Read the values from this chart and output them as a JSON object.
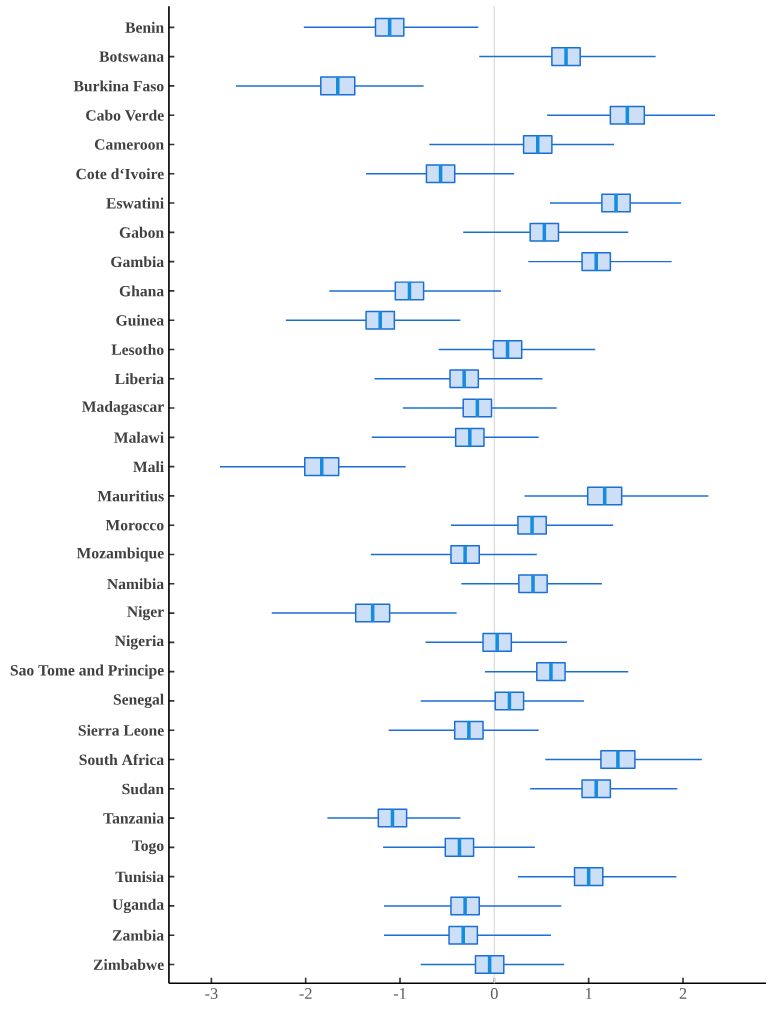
{
  "chart_data": {
    "type": "box",
    "orientation": "horizontal",
    "color": "#1a6fd6",
    "categories": [
      "Benin",
      "Botswana",
      "Burkina Faso",
      "Cabo Verde",
      "Cameroon",
      "Cote d‘Ivoire",
      "Eswatini",
      "Gabon",
      "Gambia",
      "Ghana",
      "Guinea",
      "Lesotho",
      "Liberia",
      "Madagascar",
      "Malawi",
      "Mali",
      "Mauritius",
      "Morocco",
      "Mozambique",
      "Namibia",
      "Niger",
      "Nigeria",
      "Sao Tome and Principe",
      "Senegal",
      "Sierra Leone",
      "South Africa",
      "Sudan",
      "Tanzania",
      "Togo",
      "Tunisia",
      "Uganda",
      "Zambia",
      "Zimbabwe"
    ],
    "boxes": [
      {
        "low": -2.02,
        "q1": -1.26,
        "median": -1.11,
        "q3": -0.96,
        "high": -0.17
      },
      {
        "low": -0.16,
        "q1": 0.61,
        "median": 0.76,
        "q3": 0.91,
        "high": 1.71
      },
      {
        "low": -2.74,
        "q1": -1.84,
        "median": -1.66,
        "q3": -1.48,
        "high": -0.75
      },
      {
        "low": 0.56,
        "q1": 1.23,
        "median": 1.41,
        "q3": 1.59,
        "high": 2.34
      },
      {
        "low": -0.69,
        "q1": 0.31,
        "median": 0.46,
        "q3": 0.61,
        "high": 1.27
      },
      {
        "low": -1.36,
        "q1": -0.72,
        "median": -0.57,
        "q3": -0.42,
        "high": 0.21
      },
      {
        "low": 0.59,
        "q1": 1.14,
        "median": 1.29,
        "q3": 1.44,
        "high": 1.98
      },
      {
        "low": -0.33,
        "q1": 0.38,
        "median": 0.53,
        "q3": 0.68,
        "high": 1.42
      },
      {
        "low": 0.36,
        "q1": 0.93,
        "median": 1.08,
        "q3": 1.23,
        "high": 1.88
      },
      {
        "low": -1.75,
        "q1": -1.05,
        "median": -0.9,
        "q3": -0.75,
        "high": 0.07
      },
      {
        "low": -2.21,
        "q1": -1.36,
        "median": -1.21,
        "q3": -1.06,
        "high": -0.36
      },
      {
        "low": -0.59,
        "q1": -0.01,
        "median": 0.14,
        "q3": 0.29,
        "high": 1.07
      },
      {
        "low": -1.27,
        "q1": -0.47,
        "median": -0.32,
        "q3": -0.17,
        "high": 0.51
      },
      {
        "low": -0.97,
        "q1": -0.33,
        "median": -0.18,
        "q3": -0.03,
        "high": 0.66
      },
      {
        "low": -1.3,
        "q1": -0.41,
        "median": -0.26,
        "q3": -0.11,
        "high": 0.47
      },
      {
        "low": -2.91,
        "q1": -2.01,
        "median": -1.83,
        "q3": -1.65,
        "high": -0.94
      },
      {
        "low": 0.32,
        "q1": 0.99,
        "median": 1.17,
        "q3": 1.35,
        "high": 2.27
      },
      {
        "low": -0.46,
        "q1": 0.25,
        "median": 0.4,
        "q3": 0.55,
        "high": 1.26
      },
      {
        "low": -1.31,
        "q1": -0.46,
        "median": -0.31,
        "q3": -0.16,
        "high": 0.45
      },
      {
        "low": -0.35,
        "q1": 0.26,
        "median": 0.41,
        "q3": 0.56,
        "high": 1.14
      },
      {
        "low": -2.36,
        "q1": -1.47,
        "median": -1.29,
        "q3": -1.11,
        "high": -0.4
      },
      {
        "low": -0.73,
        "q1": -0.12,
        "median": 0.03,
        "q3": 0.18,
        "high": 0.77
      },
      {
        "low": -0.1,
        "q1": 0.45,
        "median": 0.6,
        "q3": 0.75,
        "high": 1.42
      },
      {
        "low": -0.78,
        "q1": 0.01,
        "median": 0.16,
        "q3": 0.31,
        "high": 0.95
      },
      {
        "low": -1.12,
        "q1": -0.42,
        "median": -0.27,
        "q3": -0.12,
        "high": 0.47
      },
      {
        "low": 0.54,
        "q1": 1.13,
        "median": 1.31,
        "q3": 1.49,
        "high": 2.2
      },
      {
        "low": 0.38,
        "q1": 0.93,
        "median": 1.08,
        "q3": 1.23,
        "high": 1.94
      },
      {
        "low": -1.77,
        "q1": -1.23,
        "median": -1.08,
        "q3": -0.93,
        "high": -0.36
      },
      {
        "low": -1.18,
        "q1": -0.52,
        "median": -0.37,
        "q3": -0.22,
        "high": 0.43
      },
      {
        "low": 0.25,
        "q1": 0.85,
        "median": 1.0,
        "q3": 1.15,
        "high": 1.93
      },
      {
        "low": -1.17,
        "q1": -0.46,
        "median": -0.31,
        "q3": -0.16,
        "high": 0.71
      },
      {
        "low": -1.17,
        "q1": -0.48,
        "median": -0.33,
        "q3": -0.18,
        "high": 0.6
      },
      {
        "low": -0.78,
        "q1": -0.2,
        "median": -0.05,
        "q3": 0.1,
        "high": 0.74
      }
    ],
    "xlim": [
      -3.45,
      2.88
    ],
    "xticks": [
      -3,
      -2,
      -1,
      0,
      1,
      2
    ],
    "ref_lines": [
      {
        "axis": "x",
        "value": 0,
        "color": "#dddddd"
      }
    ]
  }
}
